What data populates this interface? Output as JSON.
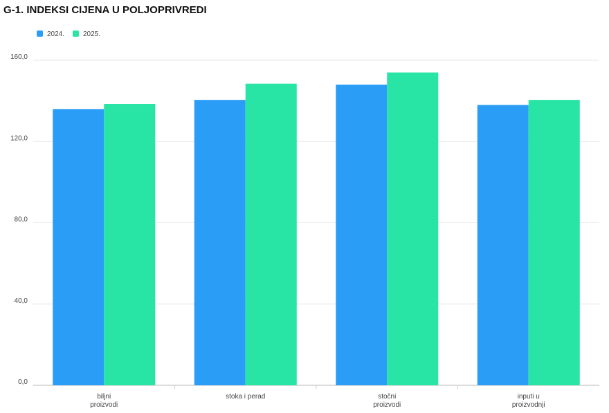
{
  "chart_data": {
    "type": "bar",
    "title": "G-1. INDEKSI CIJENA U POLJOPRIVREDI",
    "categories": [
      [
        "biljni",
        "proizvodi"
      ],
      [
        "stoka i perad"
      ],
      [
        "stočni",
        "proizvodi"
      ],
      [
        "inputi u",
        "proizvodnji"
      ]
    ],
    "series": [
      {
        "name": "2024.",
        "color": "#2a9ef6",
        "values": [
          136,
          140.5,
          148,
          138
        ]
      },
      {
        "name": "2025.",
        "color": "#28e4a5",
        "values": [
          138.5,
          148.5,
          154,
          140.5
        ]
      }
    ],
    "ylim": [
      0,
      160
    ],
    "yticks": [
      {
        "value": 0,
        "label": "0,0"
      },
      {
        "value": 40,
        "label": "40,0"
      },
      {
        "value": 80,
        "label": "80,0"
      },
      {
        "value": 120,
        "label": "120,0"
      },
      {
        "value": 160,
        "label": "160,0"
      }
    ],
    "grid": true
  }
}
